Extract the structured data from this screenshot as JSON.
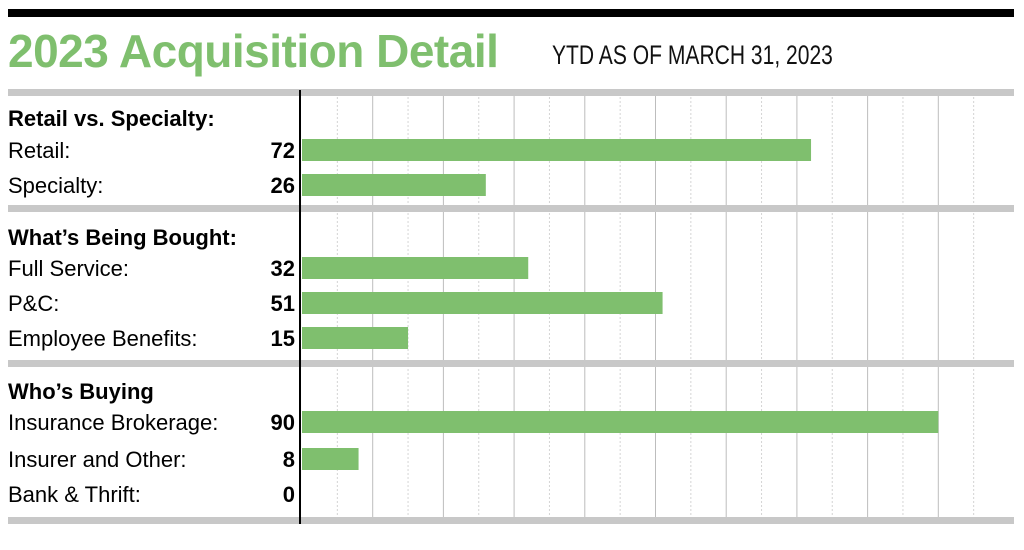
{
  "title": "2023 Acquisition Detail",
  "subtitle": "YTD AS OF MARCH 31, 2023",
  "colors": {
    "bar": "#7fbf6e",
    "separator": "#c8c8c8",
    "title": "#7fbf6e"
  },
  "chart_data": {
    "type": "bar",
    "orientation": "horizontal",
    "xlim": [
      0,
      100
    ],
    "grid": true,
    "groups": [
      {
        "header": "Retail vs. Specialty:",
        "items": [
          {
            "label": "Retail:",
            "value": 72
          },
          {
            "label": "Specialty:",
            "value": 26
          }
        ]
      },
      {
        "header": "What’s Being Bought:",
        "items": [
          {
            "label": "Full Service:",
            "value": 32
          },
          {
            "label": "P&C:",
            "value": 51
          },
          {
            "label": "Employee Benefits:",
            "value": 15
          }
        ]
      },
      {
        "header": "Who’s Buying",
        "items": [
          {
            "label": "Insurance Brokerage:",
            "value": 90
          },
          {
            "label": "Insurer and Other:",
            "value": 8
          },
          {
            "label": "Bank & Thrift:",
            "value": 0
          }
        ]
      }
    ]
  }
}
